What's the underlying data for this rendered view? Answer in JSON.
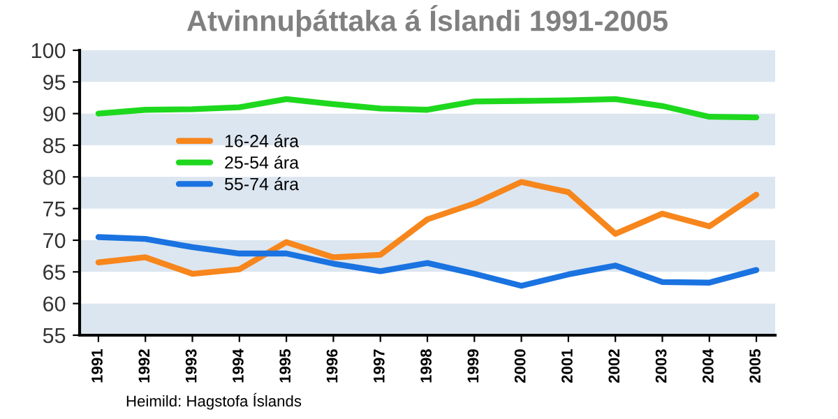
{
  "chart_data": {
    "type": "line",
    "title": "Atvinnuþáttaka á Íslandi 1991-2005",
    "categories": [
      "1991",
      "1992",
      "1993",
      "1994",
      "1995",
      "1996",
      "1997",
      "1998",
      "1999",
      "2000",
      "2001",
      "2002",
      "2003",
      "2004",
      "2005"
    ],
    "series": [
      {
        "name": "16-24 ára",
        "color": "#f7861c",
        "values": [
          66.5,
          67.3,
          64.7,
          65.4,
          69.7,
          67.3,
          67.7,
          73.3,
          75.8,
          79.2,
          77.6,
          71.0,
          74.2,
          72.2,
          77.2
        ]
      },
      {
        "name": "25-54 ára",
        "color": "#1ed81e",
        "values": [
          90.0,
          90.6,
          90.7,
          91.0,
          92.3,
          91.5,
          90.8,
          90.6,
          91.9,
          92.0,
          92.1,
          92.3,
          91.2,
          89.5,
          89.4
        ]
      },
      {
        "name": "55-74 ára",
        "color": "#1a73e0",
        "values": [
          70.5,
          70.2,
          68.9,
          67.9,
          67.9,
          66.3,
          65.1,
          66.4,
          64.7,
          62.8,
          64.6,
          66.0,
          63.4,
          63.3,
          65.3
        ]
      }
    ],
    "ylim": [
      55,
      100
    ],
    "yticks": [
      55,
      60,
      65,
      70,
      75,
      80,
      85,
      90,
      95,
      100
    ],
    "bands": [
      {
        "axis": "y",
        "from": 55,
        "to": 60,
        "color": "#dce6f0"
      },
      {
        "axis": "y",
        "from": 65,
        "to": 70,
        "color": "#dce6f0"
      },
      {
        "axis": "y",
        "from": 75,
        "to": 80,
        "color": "#dce6f0"
      },
      {
        "axis": "y",
        "from": 85,
        "to": 90,
        "color": "#dce6f0"
      },
      {
        "axis": "y",
        "from": 95,
        "to": 100,
        "color": "#dce6f0"
      }
    ],
    "grid": false,
    "legend": "top left",
    "marker": "none",
    "line_style": "solid",
    "annotations": [
      "Heimild: Hagstofa Íslands"
    ]
  }
}
